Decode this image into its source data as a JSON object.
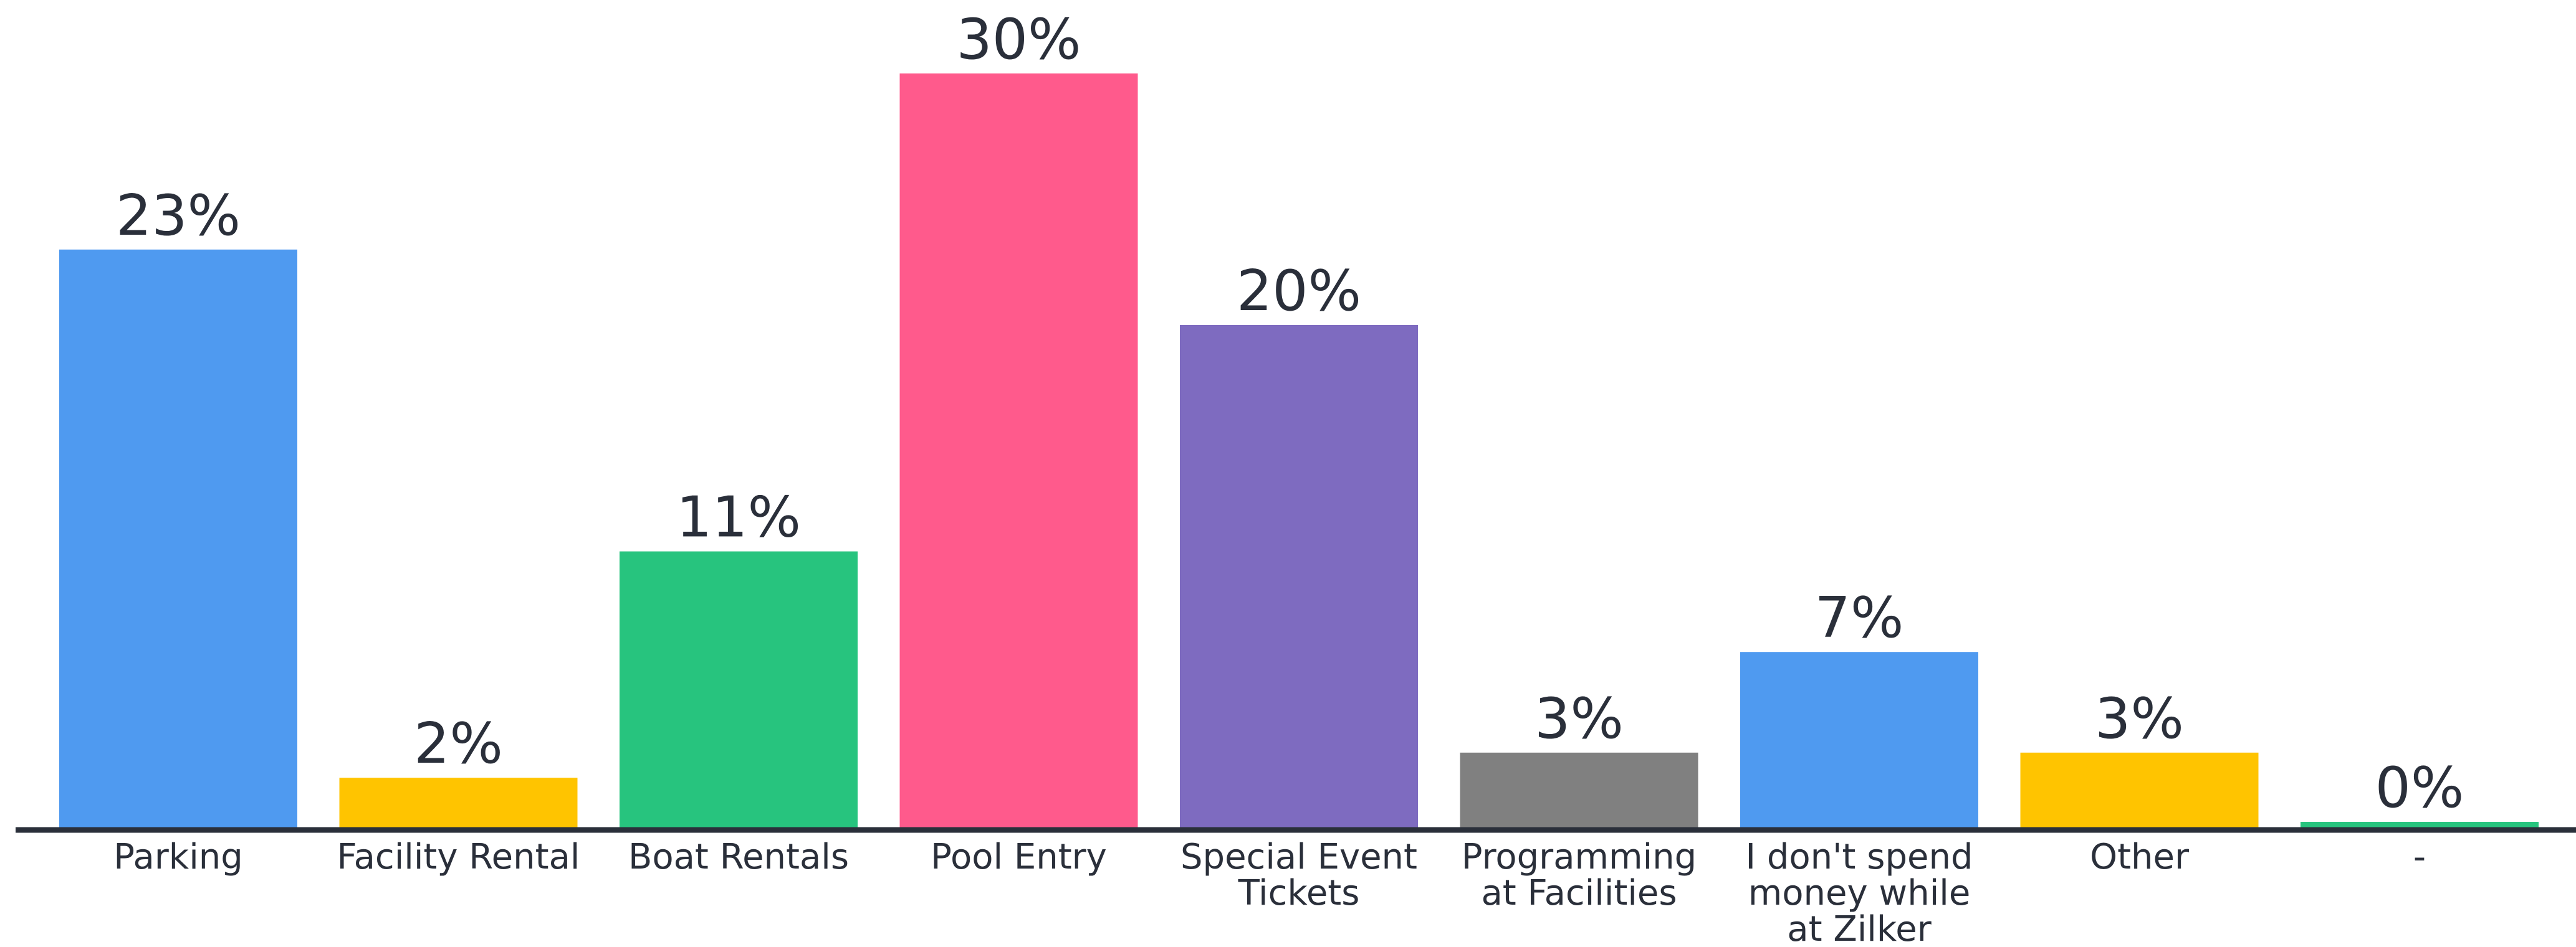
{
  "chart_data": {
    "type": "bar",
    "categories": [
      "Parking",
      "Facility Rental",
      "Boat Rentals",
      "Pool Entry",
      "Special Event Tickets",
      "Programming at Facilities",
      "I don't spend money while at Zilker",
      "Other",
      "-"
    ],
    "category_label_lines": [
      [
        "Parking"
      ],
      [
        "Facility Rental"
      ],
      [
        "Boat Rentals"
      ],
      [
        "Pool Entry"
      ],
      [
        "Special Event",
        "Tickets"
      ],
      [
        "Programming",
        "at Facilities"
      ],
      [
        "I don't spend",
        "money while",
        "at Zilker"
      ],
      [
        "Other"
      ],
      [
        "-"
      ]
    ],
    "values": [
      23,
      2,
      11,
      30,
      20,
      3,
      7,
      3,
      0
    ],
    "value_labels": [
      "23%",
      "2%",
      "11%",
      "30%",
      "20%",
      "3%",
      "7%",
      "3%",
      "0%"
    ],
    "colors": [
      "#4F9AF0",
      "#FFC400",
      "#27C47E",
      "#FF5A8C",
      "#7E6BC0",
      "#808080",
      "#4F9AF0",
      "#FFC400",
      "#27C47E"
    ],
    "ylim": [
      0,
      30
    ],
    "grid": false,
    "title": "",
    "xlabel": "",
    "ylabel": ""
  }
}
